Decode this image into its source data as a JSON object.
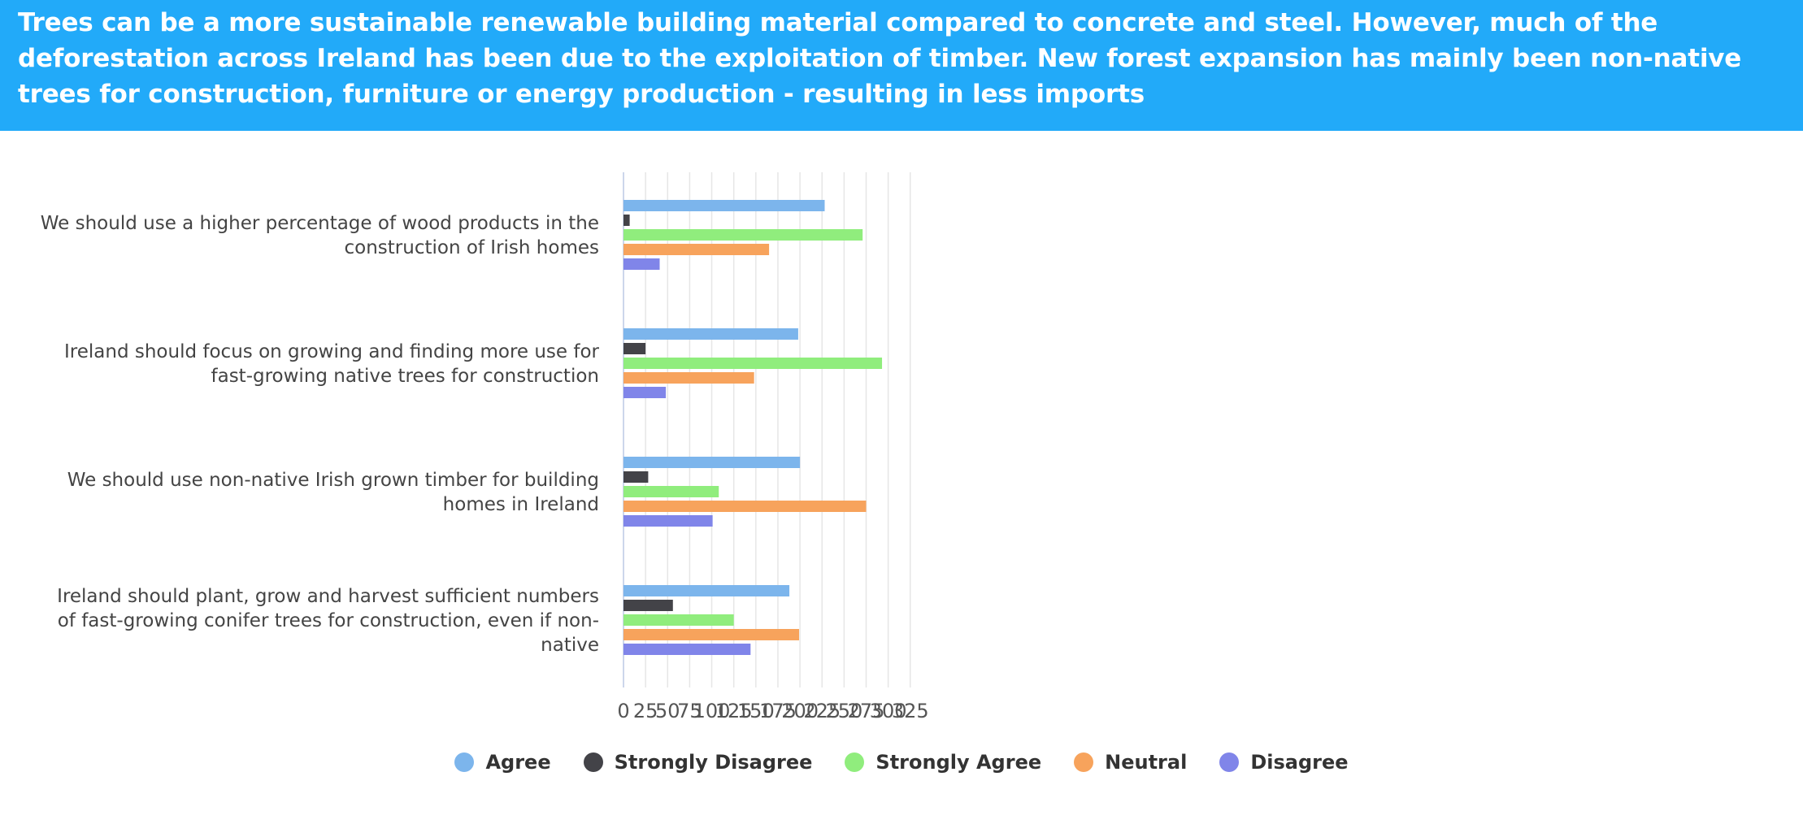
{
  "header": {
    "title": "Trees can be a more sustainable renewable building material compared to concrete and steel. However, much of the deforestation across Ireland has been due to the exploitation of timber. New forest expansion has mainly been non-native trees for construction, furniture or energy production - resulting in less imports"
  },
  "chart_data": {
    "type": "bar",
    "orientation": "horizontal",
    "title": "",
    "xlabel": "",
    "ylabel": "",
    "xlim": [
      0,
      325
    ],
    "xticks": [
      0,
      25,
      50,
      75,
      100,
      125,
      150,
      175,
      200,
      225,
      250,
      275,
      300,
      325
    ],
    "grid": true,
    "legend_position": "bottom",
    "categories": [
      [
        "We should use a higher percentage of wood products in the",
        "construction of Irish homes"
      ],
      [
        "Ireland should focus on growing and finding more use for",
        "fast-growing native trees for construction"
      ],
      [
        "We should use non-native Irish grown timber for building",
        "homes in Ireland"
      ],
      [
        "Ireland should plant, grow and harvest sufficient numbers",
        "of fast-growing conifer trees for construction, even if non-",
        "native"
      ]
    ],
    "series": [
      {
        "name": "Agree",
        "color": "#7cb5ec",
        "values": [
          228,
          198,
          200,
          188
        ]
      },
      {
        "name": "Strongly Disagree",
        "color": "#434348",
        "values": [
          7,
          25,
          28,
          56
        ]
      },
      {
        "name": "Strongly Agree",
        "color": "#90ed7d",
        "values": [
          271,
          293,
          108,
          125
        ]
      },
      {
        "name": "Neutral",
        "color": "#f7a35c",
        "values": [
          165,
          148,
          275,
          199
        ]
      },
      {
        "name": "Disagree",
        "color": "#8085e9",
        "values": [
          41,
          48,
          101,
          144
        ]
      }
    ]
  }
}
